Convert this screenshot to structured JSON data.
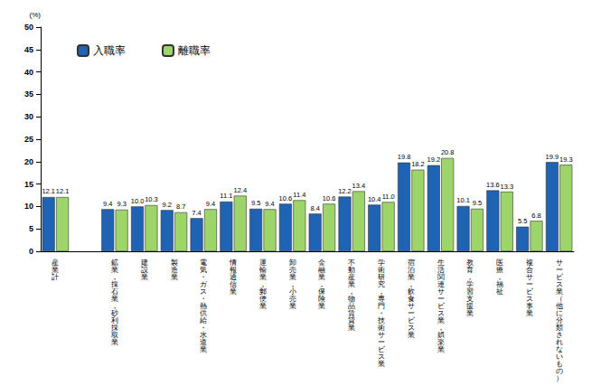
{
  "chart_data": {
    "type": "bar",
    "ylabel": "(%)",
    "categories": [
      "産業計",
      null,
      "鉱業，採石業，砂利採取業",
      "建設業",
      "製造業",
      "電気・ガス・熱供給・水道業",
      "情報通信業",
      "運輸業，郵便業",
      "卸売業，小売業",
      "金融業，保険業",
      "不動産業，物品賃貸業",
      "学術研究，専門・技術サービス業",
      "宿泊業，飲食サービス業",
      "生活関連サービス業，娯楽業",
      "教育，学習支援業",
      "医療，福祉",
      "複合サービス事業",
      "サービス業（他に分類されないもの）"
    ],
    "series": [
      {
        "name": "入職率",
        "color": "#1f63b4",
        "values": [
          12.1,
          null,
          9.4,
          10.0,
          9.2,
          7.4,
          11.1,
          9.5,
          10.6,
          8.4,
          12.2,
          10.4,
          19.8,
          19.2,
          10.1,
          13.6,
          5.5,
          19.9
        ],
        "value_labels": [
          "12.1",
          null,
          "9.4",
          "10.0",
          "9.2",
          "7.4",
          "11.1",
          "9.5",
          "10.6",
          "8.4",
          "12.2",
          "10.4",
          "19.8",
          "19.2",
          "10.1",
          "13.6",
          "5.5",
          "19.9"
        ]
      },
      {
        "name": "離職率",
        "color": "#9ed56a",
        "values": [
          12.1,
          null,
          9.3,
          10.3,
          8.7,
          9.4,
          12.4,
          9.4,
          11.4,
          10.6,
          13.4,
          11.0,
          18.2,
          20.8,
          9.5,
          13.3,
          6.8,
          19.3
        ],
        "value_labels": [
          "12.1",
          null,
          "9.3",
          "10.3",
          "8.7",
          "9.4",
          "12.4",
          "9.4",
          "11.4",
          "10.6",
          "13.4",
          "11.0",
          "18.2",
          "20.8",
          "9.5",
          "13.3",
          "6.8",
          "19.3"
        ]
      }
    ],
    "ylim": [
      0,
      50
    ],
    "yticks": [
      0,
      5,
      10,
      15,
      20,
      25,
      30,
      35,
      40,
      45,
      50
    ],
    "grid": false,
    "legend": "upper left",
    "data_labels": true
  }
}
